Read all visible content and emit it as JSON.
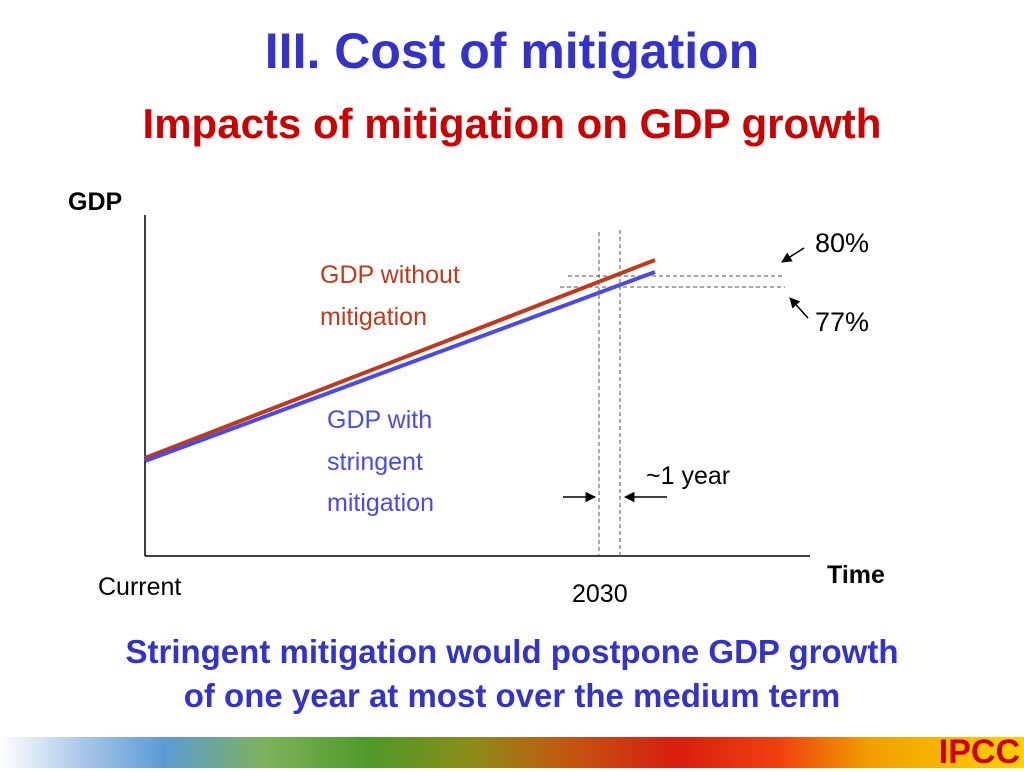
{
  "slide": {
    "title": "III. Cost of mitigation",
    "subtitle": "Impacts of mitigation on GDP growth",
    "conclusion_line1": "Stringent mitigation would postpone GDP growth",
    "conclusion_line2": "of one year at most over the medium term",
    "logo_text": "IPCC"
  },
  "colors": {
    "title": "#3333cc",
    "subtitle": "#cc0000",
    "without_mitigation": "#c0391b",
    "with_mitigation": "#4a4ae8",
    "logo": "#cc0000"
  },
  "chart_data": {
    "type": "line",
    "xlabel": "Time",
    "ylabel": "GDP",
    "x_tick_labels": [
      "Current",
      "2030"
    ],
    "series": [
      {
        "name": "GDP without mitigation",
        "label_lines": [
          "GDP without",
          "mitigation"
        ],
        "color": "#c0391b"
      },
      {
        "name": "GDP with stringent mitigation",
        "label_lines": [
          "GDP with",
          "stringent",
          "mitigation"
        ],
        "color": "#4a4ae8"
      }
    ],
    "annotations": {
      "upper_level": "80%",
      "lower_level": "77%",
      "delay": "~1 year"
    },
    "grid": false,
    "legend": "inline labels"
  }
}
